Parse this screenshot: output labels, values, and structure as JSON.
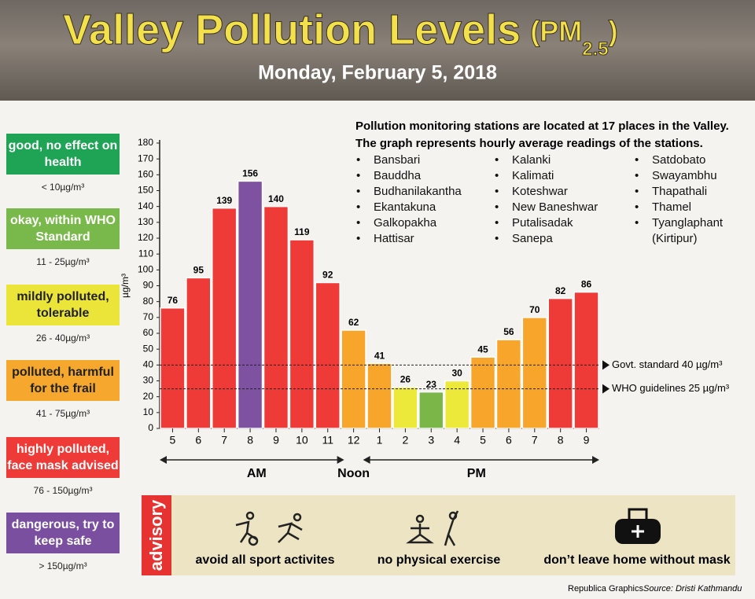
{
  "header": {
    "title": "Valley Pollution Levels",
    "title_unit_open": "(PM",
    "title_unit_sub": "2.5",
    "title_unit_close": ")",
    "date": "Monday, February 5, 2018"
  },
  "legend": [
    {
      "label": "good, no effect on health",
      "range": "< 10µg/m³",
      "color": "#1fa354",
      "text_color": "#ffffff"
    },
    {
      "label": "okay, within WHO Standard",
      "range": "11 - 25µg/m³",
      "color": "#79b84a",
      "text_color": "#ffffff"
    },
    {
      "label": "mildly polluted, tolerable",
      "range": "26 - 40µg/m³",
      "color": "#ebe53a",
      "text_color": "#222222"
    },
    {
      "label": "polluted, harmful for the frail",
      "range": "41 - 75µg/m³",
      "color": "#f6a72d",
      "text_color": "#222222"
    },
    {
      "label": "highly polluted, face mask advised",
      "range": "76 - 150µg/m³",
      "color": "#ee3b37",
      "text_color": "#ffffff"
    },
    {
      "label": "dangerous, try to keep safe",
      "range": "> 150µg/m³",
      "color": "#7b4fa0",
      "text_color": "#ffffff"
    }
  ],
  "stations": {
    "intro": [
      "Pollution monitoring stations are located at 17 places in the Valley.",
      "The graph represents hourly average readings of the stations."
    ],
    "columns": [
      [
        "Bansbari",
        "Bauddha",
        "Budhanilakantha",
        "Ekantakuna",
        "Galkopakha",
        "Hattisar"
      ],
      [
        "Kalanki",
        "Kalimati",
        "Koteshwar",
        "New Baneshwar",
        "Putalisadak",
        "Sanepa"
      ],
      [
        "Satdobato",
        "Swayambhu",
        "Thapathali",
        "Thamel",
        "Tyanglaphant (Kirtipur)"
      ]
    ]
  },
  "chart_data": {
    "type": "bar",
    "y_label": "µg/m³",
    "categories": [
      "5",
      "6",
      "7",
      "8",
      "9",
      "10",
      "11",
      "12",
      "1",
      "2",
      "3",
      "4",
      "5",
      "6",
      "7",
      "8",
      "9"
    ],
    "values": [
      76,
      95,
      139,
      156,
      140,
      119,
      92,
      62,
      41,
      26,
      23,
      30,
      45,
      56,
      70,
      82,
      86
    ],
    "colors": [
      "#ee3b37",
      "#ee3b37",
      "#ee3b37",
      "#7e52a0",
      "#ee3b37",
      "#ee3b37",
      "#ee3b37",
      "#f8a52b",
      "#f8a52b",
      "#ece93a",
      "#7ab648",
      "#ece93a",
      "#f8a52b",
      "#f8a52b",
      "#f8a52b",
      "#ee3b37",
      "#ee3b37"
    ],
    "ylim": [
      0,
      180
    ],
    "yticks": [
      0,
      10,
      20,
      30,
      40,
      50,
      60,
      70,
      80,
      90,
      100,
      110,
      120,
      130,
      140,
      150,
      160,
      170,
      180
    ],
    "reference_lines": [
      {
        "value": 40,
        "label": "Govt. standard 40 µg/m³"
      },
      {
        "value": 25,
        "label": "WHO guidelines 25 µg/m³"
      }
    ],
    "periods": [
      "AM",
      "Noon",
      "PM"
    ]
  },
  "advisory": {
    "label": "advisory",
    "items": [
      "avoid all sport activites",
      "no physical exercise",
      "don’t leave home without mask"
    ]
  },
  "footer": {
    "credit": "Republica Graphics",
    "source": "Source: Dristi Kathmandu"
  }
}
